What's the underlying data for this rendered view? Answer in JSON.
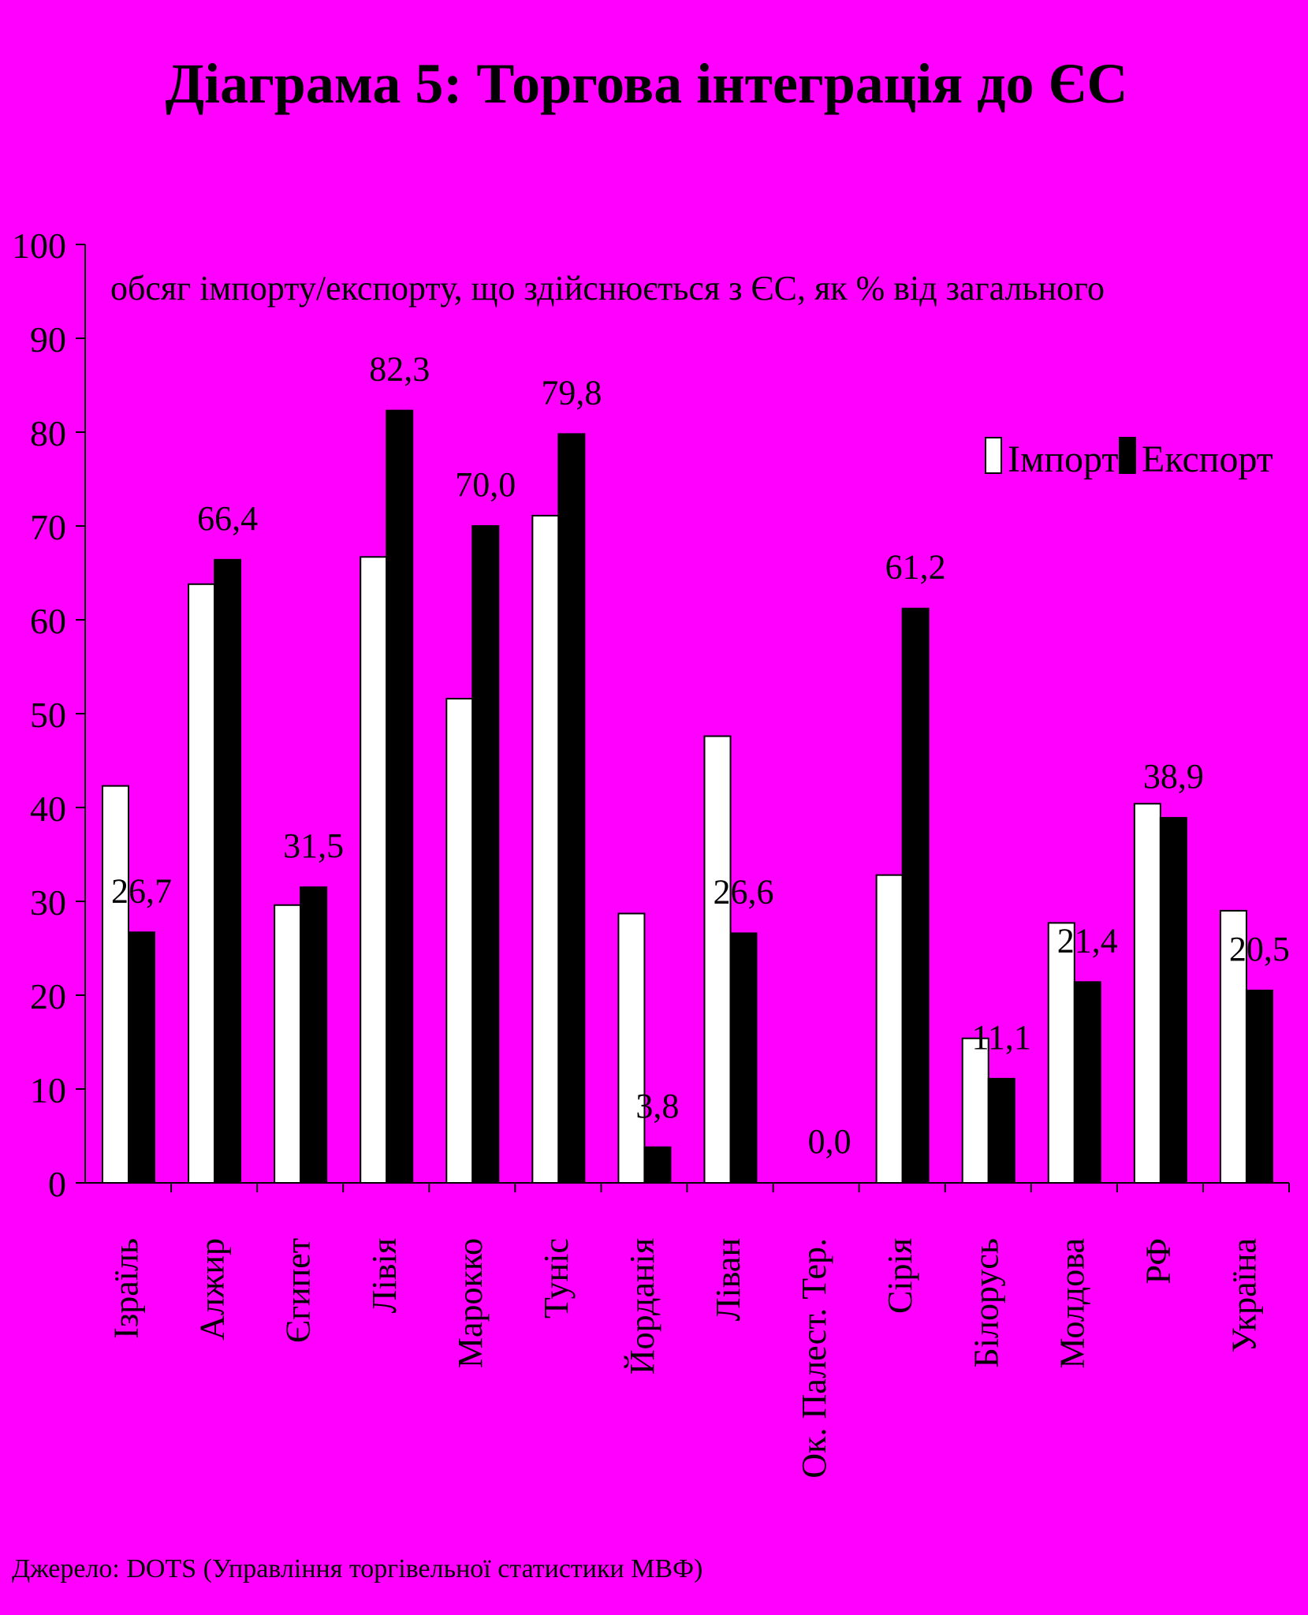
{
  "colors": {
    "background": "#FF00FF",
    "import": "#FFFFFF",
    "export": "#000000"
  },
  "chart_data": {
    "type": "bar",
    "title": "Діаграма 5: Торгова інтеграція до ЄС",
    "subtitle": "обсяг імпорту/експорту, що здійснюється з ЄС, як % від  загального",
    "source": "Джерело: DOTS (Управління торгівельної статистики МВФ)",
    "ylim": [
      0,
      100
    ],
    "yticks": [
      "0",
      "10",
      "20",
      "30",
      "40",
      "50",
      "60",
      "70",
      "80",
      "90",
      "100"
    ],
    "grid": false,
    "legend": "top-right",
    "categories": [
      "Ізраїль",
      "Алжир",
      "Єгипет",
      "Лівія",
      "Марокко",
      "Туніс",
      "Йорданія",
      "Ліван",
      "Ок. Палест. Тер.",
      "Сірія",
      "Білорусь",
      "Молдова",
      "РФ",
      "Україна"
    ],
    "series": [
      {
        "name": "Імпорт",
        "values": [
          42.3,
          63.8,
          29.6,
          66.7,
          51.6,
          71.1,
          28.7,
          47.6,
          0,
          32.8,
          15.4,
          27.7,
          40.4,
          29.0
        ]
      },
      {
        "name": "Експорт",
        "values": [
          26.7,
          66.4,
          31.5,
          82.3,
          70.0,
          79.8,
          3.8,
          26.6,
          0.0,
          61.2,
          11.1,
          21.4,
          38.9,
          20.5
        ],
        "labels": [
          "26,7",
          "66,4",
          "31,5",
          "82,3",
          "70,0",
          "79,8",
          "3,8",
          "26,6",
          "0,0",
          "61,2",
          "11,1",
          "21,4",
          "38,9",
          "20,5"
        ]
      }
    ]
  }
}
